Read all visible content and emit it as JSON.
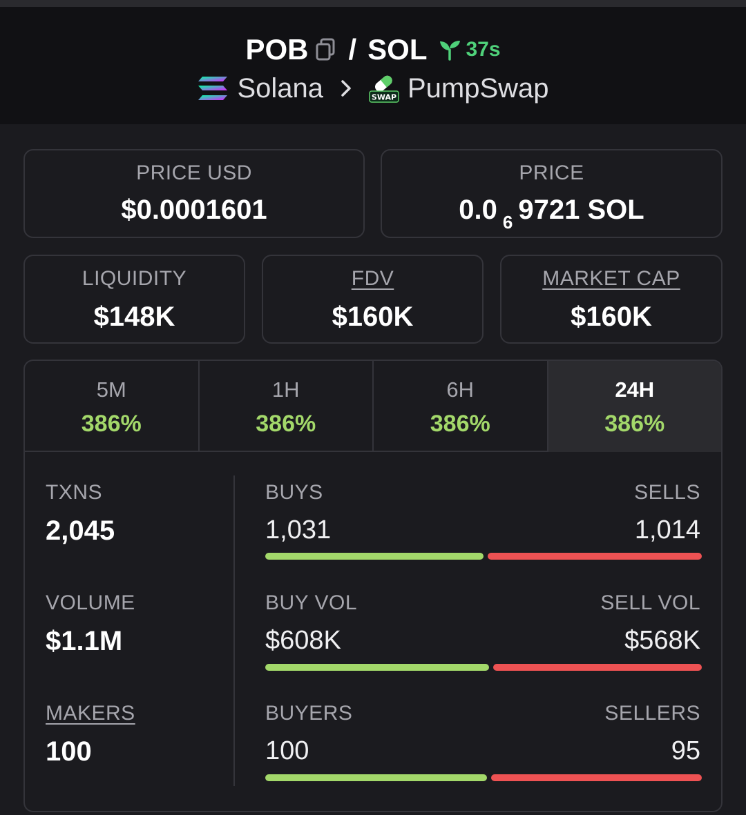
{
  "header": {
    "base_token": "POB",
    "separator": "/",
    "quote_token": "SOL",
    "age": "37s",
    "chain": "Solana",
    "dex": "PumpSwap",
    "dex_logo_text": "SWAP"
  },
  "price_cards": {
    "price_usd": {
      "label": "PRICE USD",
      "value": "$0.0001601"
    },
    "price_native": {
      "label": "PRICE",
      "prefix": "0.0",
      "zeros": "6",
      "rest": "9721 SOL"
    }
  },
  "metrics": {
    "liquidity": {
      "label": "LIQUIDITY",
      "value": "$148K"
    },
    "fdv": {
      "label": "FDV",
      "value": "$160K"
    },
    "market_cap": {
      "label": "MARKET CAP",
      "value": "$160K"
    }
  },
  "timeframes": [
    {
      "label": "5M",
      "change": "386%"
    },
    {
      "label": "1H",
      "change": "386%"
    },
    {
      "label": "6H",
      "change": "386%"
    },
    {
      "label": "24H",
      "change": "386%",
      "active": true
    }
  ],
  "stats": {
    "txns": {
      "label": "TXNS",
      "value": "2,045"
    },
    "volume": {
      "label": "VOLUME",
      "value": "$1.1M"
    },
    "makers": {
      "label": "MAKERS",
      "value": "100"
    },
    "buys": {
      "label": "BUYS",
      "value": "1,031",
      "count": 1031
    },
    "sells": {
      "label": "SELLS",
      "value": "1,014",
      "count": 1014
    },
    "buy_vol": {
      "label": "BUY VOL",
      "value": "$608K",
      "amount": 608
    },
    "sell_vol": {
      "label": "SELL VOL",
      "value": "$568K",
      "amount": 568
    },
    "buyers": {
      "label": "BUYERS",
      "value": "100",
      "count": 100
    },
    "sellers": {
      "label": "SELLERS",
      "value": "95",
      "count": 95
    }
  },
  "colors": {
    "positive": "#a3d86a",
    "negative": "#ee5253",
    "age_green": "#4fd17a",
    "background": "#1b1b1f",
    "header_bg": "#111114"
  },
  "icons": {
    "copy": "copy-icon",
    "age": "seedling-icon",
    "chain": "solana-logo-icon",
    "chevron": "chevron-right-icon",
    "dex": "pumpswap-logo-icon"
  }
}
